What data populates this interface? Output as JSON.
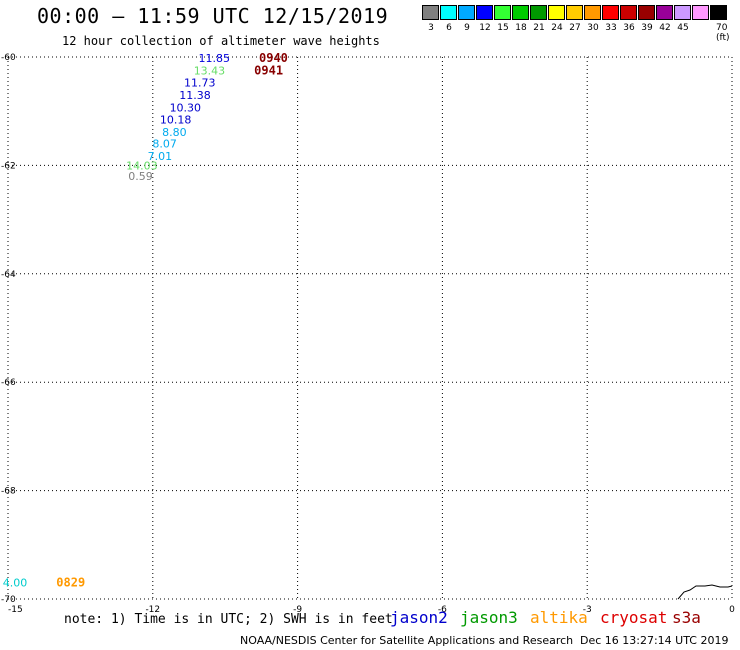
{
  "header": {
    "title": "00:00 – 11:59 UTC 12/15/2019",
    "subtitle": "12 hour collection of altimeter wave heights"
  },
  "legend": {
    "units": "70 (ft)",
    "swatches": [
      {
        "label": "3",
        "color": "#808080"
      },
      {
        "label": "6",
        "color": "#00ffff"
      },
      {
        "label": "9",
        "color": "#00aaff"
      },
      {
        "label": "12",
        "color": "#0000ff"
      },
      {
        "label": "15",
        "color": "#33ff33"
      },
      {
        "label": "18",
        "color": "#00cc00"
      },
      {
        "label": "21",
        "color": "#009900"
      },
      {
        "label": "24",
        "color": "#ffff00"
      },
      {
        "label": "27",
        "color": "#ffcc00"
      },
      {
        "label": "30",
        "color": "#ff9900"
      },
      {
        "label": "33",
        "color": "#ff0000"
      },
      {
        "label": "36",
        "color": "#cc0000"
      },
      {
        "label": "39",
        "color": "#990000"
      },
      {
        "label": "42",
        "color": "#990099"
      },
      {
        "label": "45",
        "color": "#cc99ff"
      },
      {
        "label": "",
        "color": "#ff99ff"
      },
      {
        "label": "",
        "color": "#000000"
      }
    ]
  },
  "map": {
    "lon_range": [
      -15,
      0
    ],
    "lat_range": [
      -70,
      -60
    ],
    "lon_ticks": [
      "-15",
      "-12",
      "-9",
      "-6",
      "-3",
      "0"
    ],
    "lat_ticks": [
      "-60",
      "-62",
      "-64",
      "-66",
      "-68",
      "-70"
    ],
    "grid": true,
    "observations": [
      {
        "lon": -10.4,
        "lat": -60.02,
        "value": "11.85",
        "color": "#0000dd"
      },
      {
        "lon": -10.5,
        "lat": -60.25,
        "value": "13.43",
        "color": "#66dd66"
      },
      {
        "lon": -10.7,
        "lat": -60.47,
        "value": "11.73",
        "color": "#0000cc"
      },
      {
        "lon": -10.8,
        "lat": -60.7,
        "value": "11.38",
        "color": "#0000cc"
      },
      {
        "lon": -11.0,
        "lat": -60.93,
        "value": "10.30",
        "color": "#0000cc"
      },
      {
        "lon": -11.2,
        "lat": -61.15,
        "value": "10.18",
        "color": "#0000cc"
      },
      {
        "lon": -11.3,
        "lat": -61.38,
        "value": "8.80",
        "color": "#00aaee"
      },
      {
        "lon": -11.5,
        "lat": -61.6,
        "value": "8.07",
        "color": "#00aaee"
      },
      {
        "lon": -11.6,
        "lat": -61.83,
        "value": "7.01",
        "color": "#00aaee"
      },
      {
        "lon": -11.9,
        "lat": -62.0,
        "value": "14.03",
        "color": "#66dd66"
      },
      {
        "lon": -12.0,
        "lat": -62.2,
        "value": "0.59",
        "color": "#808080"
      },
      {
        "lon": -14.6,
        "lat": -69.7,
        "value": "4.00",
        "color": "#00cccc"
      }
    ],
    "pass_times": [
      {
        "lon": -9.5,
        "lat": -60.02,
        "time": "0940",
        "color": "#880000"
      },
      {
        "lon": -9.6,
        "lat": -60.25,
        "time": "0941",
        "color": "#880000"
      },
      {
        "lon": -13.7,
        "lat": -69.7,
        "time": "0829",
        "color": "#ff9900"
      }
    ]
  },
  "notes": {
    "note": "note: 1) Time is in UTC; 2) SWH is in feet",
    "footer_center": "NOAA/NESDIS Center for Satellite Applications and Research",
    "footer_time": "Dec 16 13:27:14 UTC 2019"
  },
  "satellites": [
    {
      "name": "jason2",
      "color": "#0000cc"
    },
    {
      "name": "jason3",
      "color": "#009900"
    },
    {
      "name": "altika",
      "color": "#ff9900"
    },
    {
      "name": "cryosat",
      "color": "#dd0000"
    },
    {
      "name": "s3a",
      "color": "#990000"
    }
  ]
}
